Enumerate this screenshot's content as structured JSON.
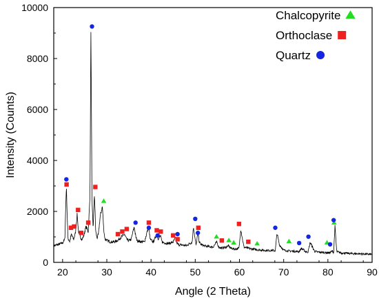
{
  "chart_data": {
    "type": "line",
    "xlabel": "Angle (2 Theta)",
    "ylabel": "Intensity (Counts)",
    "xlim": [
      18,
      90
    ],
    "ylim": [
      0,
      10000
    ],
    "xticks": [
      20,
      30,
      40,
      50,
      60,
      70,
      80,
      90
    ],
    "yticks": [
      0,
      2000,
      4000,
      6000,
      8000,
      10000
    ],
    "grid": false,
    "legend_position": "top-right",
    "pattern": {
      "name": "",
      "color": "#000000",
      "x": [
        18,
        19,
        20,
        20.5,
        20.85,
        21.2,
        21.6,
        22,
        22.5,
        22.9,
        23.3,
        23.6,
        24,
        24.4,
        24.8,
        25.3,
        25.8,
        26.2,
        26.4,
        26.65,
        26.9,
        27.2,
        27.5,
        27.8,
        28.1,
        28.5,
        29,
        29.3,
        29.6,
        30,
        30.5,
        31,
        32,
        32.7,
        33.3,
        34,
        34.5,
        35,
        35.5,
        36.2,
        36.55,
        36.9,
        37.5,
        38.5,
        39.2,
        39.5,
        39.8,
        40.5,
        41.3,
        41.7,
        42.1,
        42.5,
        43.2,
        44,
        45,
        45.5,
        45.85,
        46.2,
        47,
        48,
        49.3,
        49.6,
        49.9,
        50.2,
        50.6,
        50.9,
        51.3,
        52,
        53,
        54,
        54.9,
        55.3,
        56,
        57,
        57.5,
        58,
        59,
        59.9,
        60.3,
        61,
        62,
        63,
        64,
        65,
        66,
        67,
        68.1,
        68.5,
        69,
        70,
        71,
        72,
        73,
        73.5,
        74,
        75,
        75.5,
        76,
        77,
        78,
        79,
        80,
        80.5,
        81,
        81.3,
        81.6,
        82,
        83,
        84,
        85,
        86,
        87,
        88,
        89,
        90
      ],
      "y": [
        650,
        700,
        760,
        900,
        3000,
        950,
        820,
        1100,
        900,
        1150,
        1900,
        1200,
        1000,
        900,
        1050,
        1400,
        1200,
        2600,
        9100,
        2400,
        1300,
        2700,
        1200,
        950,
        1100,
        1800,
        2200,
        1300,
        900,
        870,
        820,
        800,
        820,
        900,
        1000,
        1100,
        900,
        850,
        900,
        1400,
        1000,
        850,
        820,
        800,
        1250,
        1400,
        900,
        800,
        1100,
        900,
        1050,
        800,
        760,
        740,
        800,
        950,
        750,
        700,
        680,
        660,
        800,
        1400,
        1000,
        650,
        1200,
        800,
        700,
        650,
        620,
        600,
        800,
        600,
        560,
        600,
        650,
        560,
        520,
        550,
        1300,
        600,
        550,
        520,
        500,
        480,
        470,
        470,
        460,
        1150,
        700,
        480,
        450,
        440,
        430,
        420,
        550,
        420,
        400,
        780,
        430,
        400,
        390,
        380,
        380,
        450,
        380,
        1400,
        420,
        370,
        360,
        350,
        340,
        340,
        330,
        320,
        320
      ]
    },
    "series": [
      {
        "name": "Chalcopyrite",
        "marker": "triangle",
        "color": "#22dd22",
        "x": [
          29.3,
          54.8,
          57.6,
          58.7,
          64,
          71.2,
          79.8,
          81.4
        ],
        "y": [
          2300,
          900,
          760,
          670,
          630,
          720,
          670,
          1450
        ]
      },
      {
        "name": "Orthoclase",
        "marker": "square",
        "color": "#ee2020",
        "x": [
          20.9,
          21.9,
          22.6,
          23.5,
          24.2,
          25.8,
          27.4,
          32.5,
          33.5,
          34.5,
          39.5,
          41.3,
          42.2,
          45,
          46,
          50.7,
          56,
          59.9,
          62
        ],
        "y": [
          2950,
          1250,
          1300,
          1950,
          1050,
          1450,
          2850,
          1000,
          1100,
          1200,
          1450,
          1150,
          1100,
          950,
          800,
          1250,
          750,
          1400,
          700
        ]
      },
      {
        "name": "Quartz",
        "marker": "circle",
        "color": "#1525e0",
        "x": [
          20.85,
          26.65,
          36.5,
          39.5,
          41.5,
          46,
          50,
          50.6,
          68.1,
          73.5,
          75.6,
          80.5,
          81.3
        ],
        "y": [
          3150,
          9150,
          1450,
          1250,
          950,
          1000,
          1600,
          1050,
          1250,
          650,
          900,
          600,
          1550
        ]
      }
    ]
  }
}
